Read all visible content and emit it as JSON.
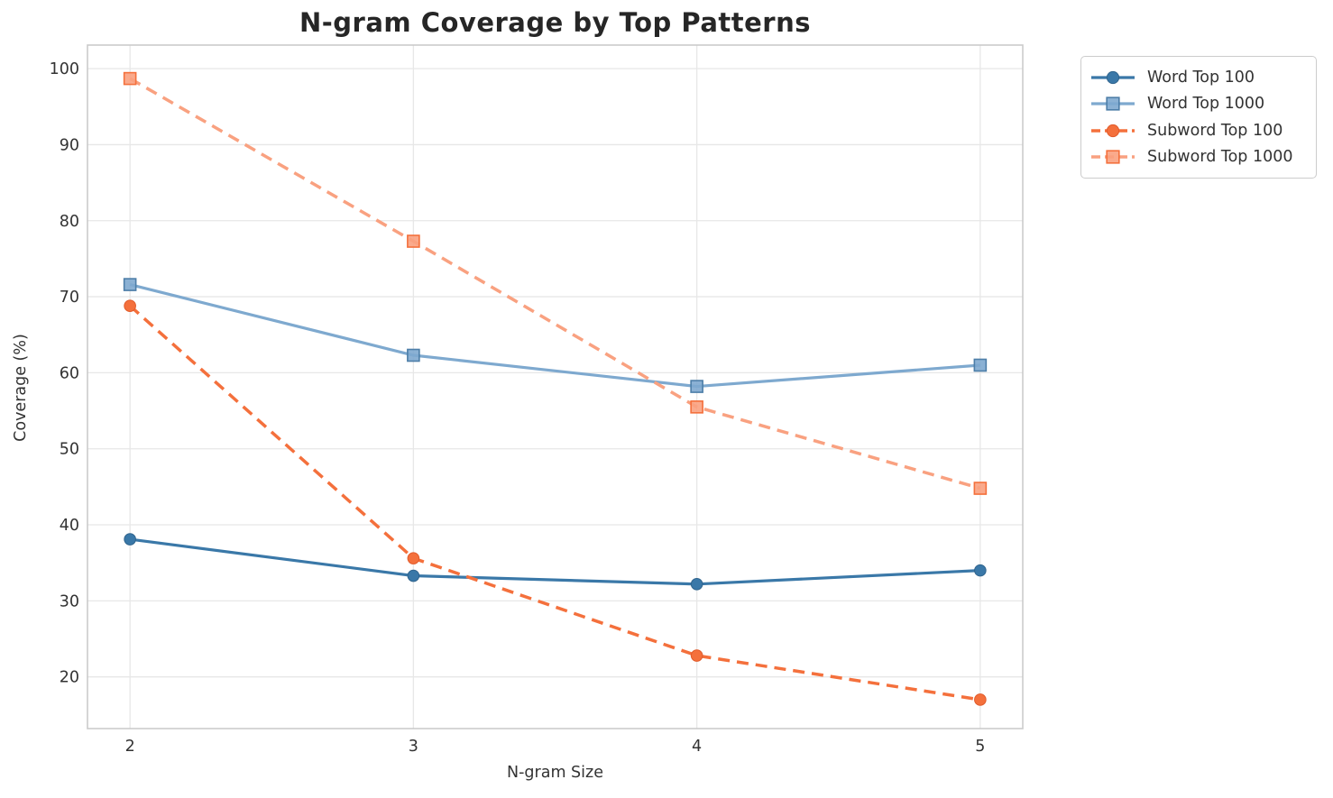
{
  "figure": {
    "background": "#ffffff",
    "grid_color": "#e7e7e7",
    "spine_color": "#cbcbcb",
    "tick_label_color": "#333333",
    "title_color": "#262626"
  },
  "chart_data": {
    "type": "line",
    "title": "N-gram Coverage by Top Patterns",
    "xlabel": "N-gram Size",
    "ylabel": "Coverage (%)",
    "x": [
      2,
      3,
      4,
      5
    ],
    "xticks": [
      2,
      3,
      4,
      5
    ],
    "yticks": [
      20,
      30,
      40,
      50,
      60,
      70,
      80,
      90,
      100
    ],
    "xlim": [
      1.85,
      5.15
    ],
    "ylim": [
      13.2,
      103.1
    ],
    "grid": true,
    "legend_position": "outside-upper-right",
    "series": [
      {
        "name": "Word Top 100",
        "values": [
          38.1,
          33.3,
          32.2,
          34.0
        ],
        "color": "#3a78a8",
        "edge_color": "#30648d",
        "marker": "circle",
        "linestyle": "solid"
      },
      {
        "name": "Word Top 1000",
        "values": [
          71.6,
          62.3,
          58.2,
          61.0
        ],
        "color": "#7ea9cf",
        "edge_color": "#4d7ea8",
        "marker": "square",
        "linestyle": "solid"
      },
      {
        "name": "Subword Top 100",
        "values": [
          68.8,
          35.6,
          22.8,
          17.0
        ],
        "color": "#f4703c",
        "edge_color": "#e15b2b",
        "marker": "circle",
        "linestyle": "dashed"
      },
      {
        "name": "Subword Top 1000",
        "values": [
          98.7,
          77.3,
          55.5,
          44.8
        ],
        "color": "#f9a180",
        "edge_color": "#f4703c",
        "marker": "square",
        "linestyle": "dashed"
      }
    ]
  }
}
